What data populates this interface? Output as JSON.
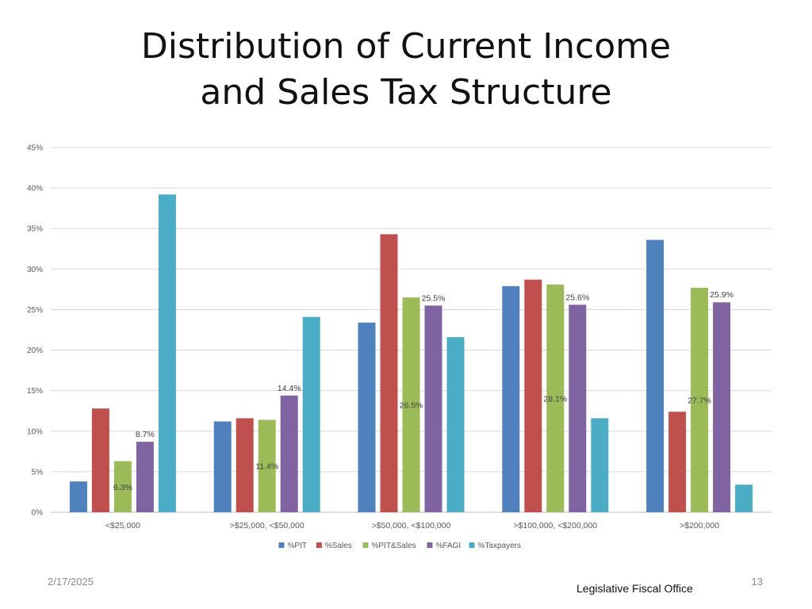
{
  "slide": {
    "title_line1": "Distribution of Current Income",
    "title_line2": "and Sales Tax Structure",
    "date": "2/17/2025",
    "footer_org": "Legislative Fiscal Office",
    "page_number": "13"
  },
  "chart_data": {
    "type": "bar",
    "title": "Distribution of Current Income and Sales Tax Structure",
    "xlabel": "",
    "ylabel": "",
    "categories": [
      "<$25,000",
      ">$25,000, <$50,000",
      ">$50,000, <$100,000",
      ">$100,000, <$200,000",
      ">$200,000"
    ],
    "ylim": [
      0,
      45
    ],
    "yticks": [
      0,
      5,
      10,
      15,
      20,
      25,
      30,
      35,
      40,
      45
    ],
    "ytick_labels": [
      "0%",
      "5%",
      "10%",
      "15%",
      "20%",
      "25%",
      "30%",
      "35%",
      "40%",
      "45%"
    ],
    "grid": true,
    "legend_position": "bottom",
    "series": [
      {
        "name": "%PIT",
        "color": "#4F81BD",
        "values": [
          3.8,
          11.2,
          23.4,
          27.9,
          33.6
        ]
      },
      {
        "name": "%Sales",
        "color": "#C0504D",
        "values": [
          12.8,
          11.6,
          34.3,
          28.7,
          12.4
        ]
      },
      {
        "name": "%PIT&Sales",
        "color": "#9BBB59",
        "values": [
          6.3,
          11.4,
          26.5,
          28.1,
          27.7
        ]
      },
      {
        "name": "%FAGI",
        "color": "#8064A2",
        "values": [
          8.7,
          14.4,
          25.5,
          25.6,
          25.9
        ]
      },
      {
        "name": "%Taxpayers",
        "color": "#4BACC6",
        "values": [
          39.2,
          24.1,
          21.6,
          11.6,
          3.4
        ]
      }
    ],
    "data_labels": [
      {
        "series": 2,
        "category": 0,
        "text": "6.3%",
        "placement": "inside"
      },
      {
        "series": 3,
        "category": 0,
        "text": "8.7%",
        "placement": "top"
      },
      {
        "series": 2,
        "category": 1,
        "text": "11.4%",
        "placement": "inside"
      },
      {
        "series": 3,
        "category": 1,
        "text": "14.4%",
        "placement": "top"
      },
      {
        "series": 2,
        "category": 2,
        "text": "26.5%",
        "placement": "inside"
      },
      {
        "series": 3,
        "category": 2,
        "text": "25.5%",
        "placement": "top"
      },
      {
        "series": 2,
        "category": 3,
        "text": "28.1%",
        "placement": "inside"
      },
      {
        "series": 3,
        "category": 3,
        "text": "25.6%",
        "placement": "top"
      },
      {
        "series": 2,
        "category": 4,
        "text": "27.7%",
        "placement": "inside"
      },
      {
        "series": 3,
        "category": 4,
        "text": "25.9%",
        "placement": "top"
      }
    ]
  }
}
